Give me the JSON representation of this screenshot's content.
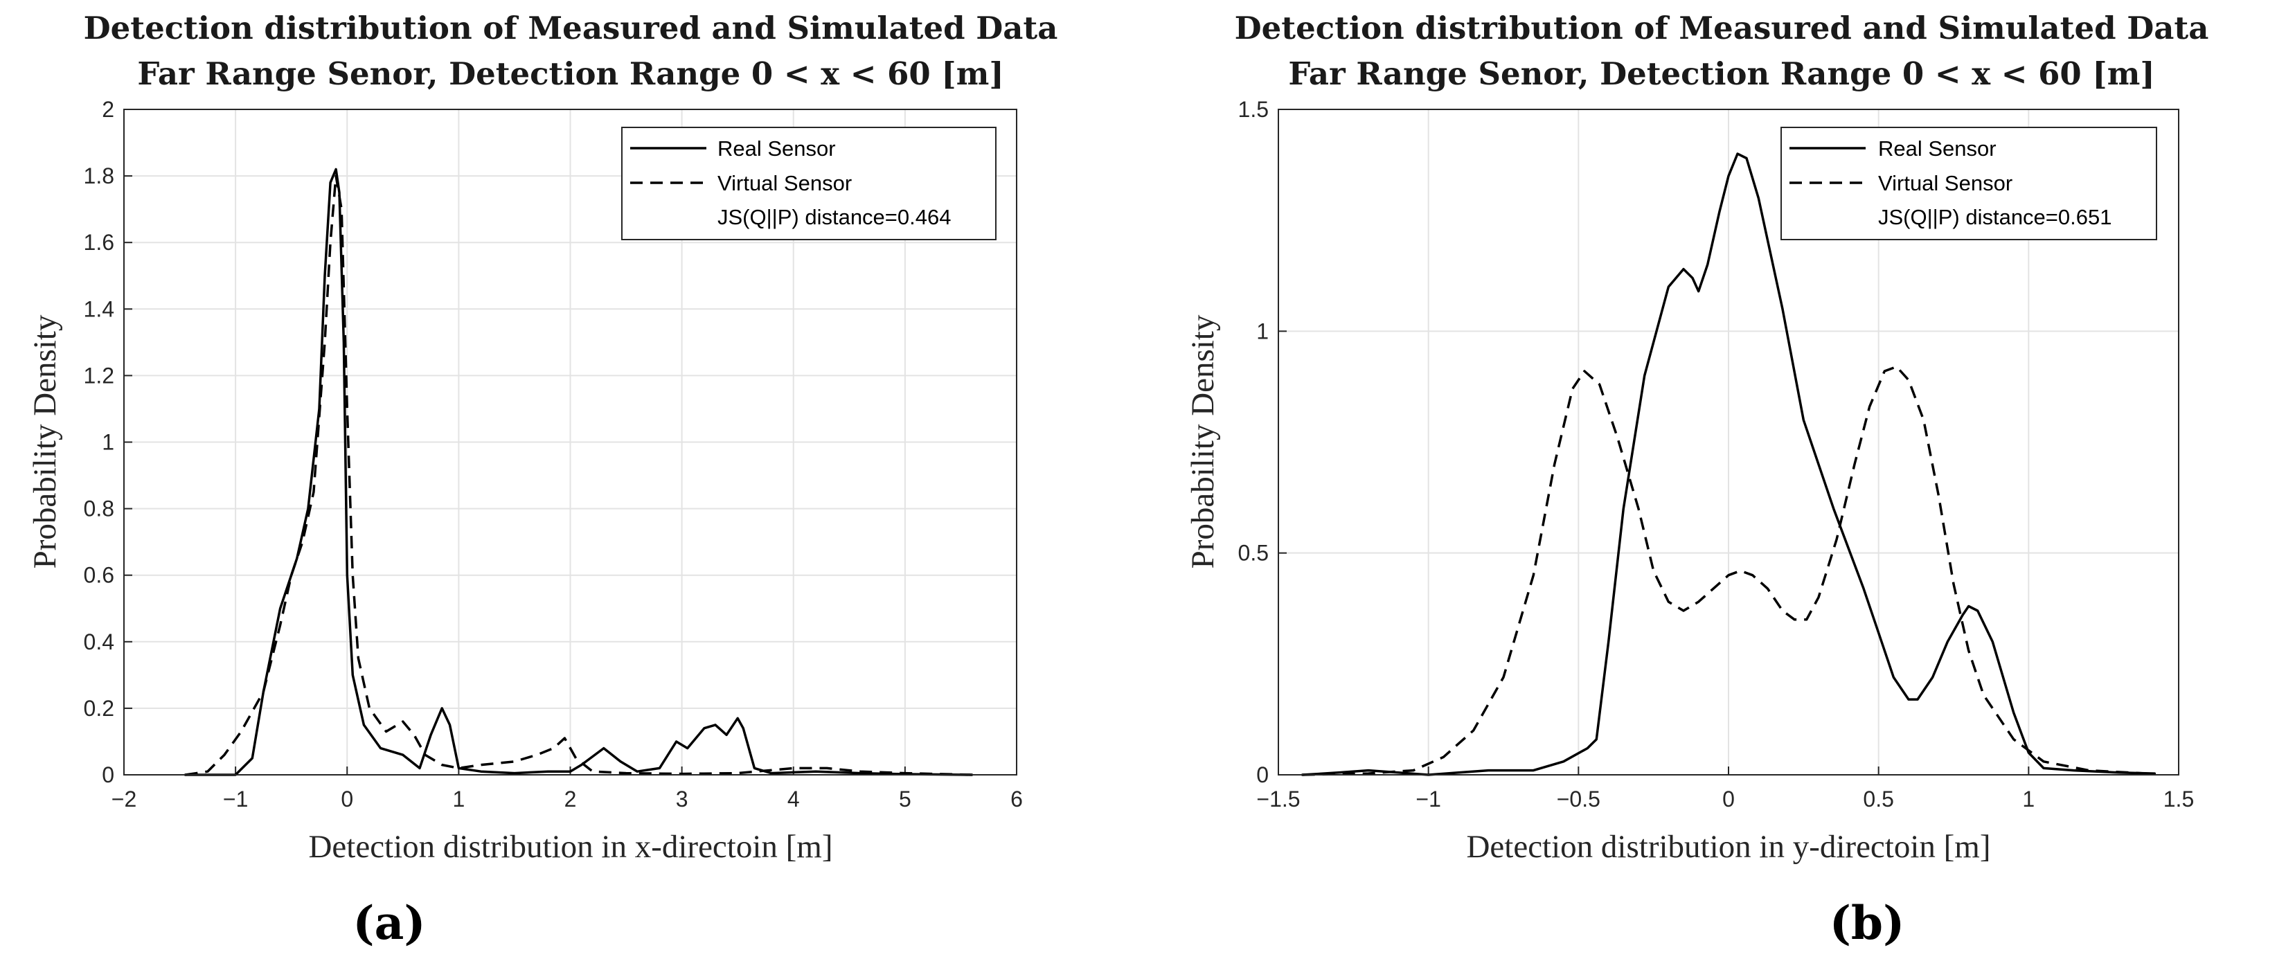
{
  "chart_data": [
    {
      "type": "line",
      "panel_label": "(a)",
      "title_line1": "Detection distribution of Measured and Simulated Data",
      "title_line2": "Far Range Senor, Detection Range 0 < x < 60 [m]",
      "xlabel": "Detection distribution in x-directoin [m]",
      "ylabel": "Probability Density",
      "xlim": [
        -2,
        6
      ],
      "ylim": [
        0,
        2
      ],
      "xticks": [
        -2,
        -1,
        0,
        1,
        2,
        3,
        4,
        5,
        6
      ],
      "yticks": [
        0,
        0.2,
        0.4,
        0.6,
        0.8,
        1,
        1.2,
        1.4,
        1.6,
        1.8,
        2
      ],
      "xtick_labels": [
        "−2",
        "−1",
        "0",
        "1",
        "2",
        "3",
        "4",
        "5",
        "6"
      ],
      "ytick_labels": [
        "0",
        "0.2",
        "0.4",
        "0.6",
        "0.8",
        "1",
        "1.2",
        "1.4",
        "1.6",
        "1.8",
        "2"
      ],
      "grid": true,
      "legend_position": "top-right",
      "annotation": "JS(Q||P) distance=0.464",
      "series": [
        {
          "name": "Real Sensor",
          "style": "solid",
          "points": [
            [
              -1.45,
              0
            ],
            [
              -1.0,
              0
            ],
            [
              -0.85,
              0.05
            ],
            [
              -0.75,
              0.25
            ],
            [
              -0.6,
              0.5
            ],
            [
              -0.45,
              0.65
            ],
            [
              -0.35,
              0.8
            ],
            [
              -0.25,
              1.1
            ],
            [
              -0.2,
              1.5
            ],
            [
              -0.15,
              1.78
            ],
            [
              -0.1,
              1.82
            ],
            [
              -0.07,
              1.75
            ],
            [
              -0.03,
              1.3
            ],
            [
              0,
              0.6
            ],
            [
              0.05,
              0.3
            ],
            [
              0.15,
              0.15
            ],
            [
              0.3,
              0.08
            ],
            [
              0.5,
              0.06
            ],
            [
              0.65,
              0.02
            ],
            [
              0.75,
              0.12
            ],
            [
              0.85,
              0.2
            ],
            [
              0.92,
              0.15
            ],
            [
              1.0,
              0.02
            ],
            [
              1.2,
              0.01
            ],
            [
              1.5,
              0.005
            ],
            [
              1.8,
              0.01
            ],
            [
              2.0,
              0.01
            ],
            [
              2.1,
              0.03
            ],
            [
              2.3,
              0.08
            ],
            [
              2.45,
              0.04
            ],
            [
              2.6,
              0.01
            ],
            [
              2.8,
              0.02
            ],
            [
              2.95,
              0.1
            ],
            [
              3.05,
              0.08
            ],
            [
              3.2,
              0.14
            ],
            [
              3.3,
              0.15
            ],
            [
              3.4,
              0.12
            ],
            [
              3.5,
              0.17
            ],
            [
              3.55,
              0.14
            ],
            [
              3.65,
              0.02
            ],
            [
              3.8,
              0.005
            ],
            [
              4.2,
              0.01
            ],
            [
              4.6,
              0.005
            ],
            [
              5.0,
              0.002
            ],
            [
              5.6,
              0
            ]
          ]
        },
        {
          "name": "Virtual Sensor",
          "style": "dashed",
          "points": [
            [
              -1.45,
              0
            ],
            [
              -1.25,
              0.01
            ],
            [
              -1.1,
              0.06
            ],
            [
              -0.95,
              0.13
            ],
            [
              -0.75,
              0.25
            ],
            [
              -0.6,
              0.45
            ],
            [
              -0.5,
              0.6
            ],
            [
              -0.4,
              0.7
            ],
            [
              -0.3,
              0.85
            ],
            [
              -0.2,
              1.3
            ],
            [
              -0.15,
              1.6
            ],
            [
              -0.1,
              1.8
            ],
            [
              -0.05,
              1.7
            ],
            [
              0,
              1.1
            ],
            [
              0.05,
              0.6
            ],
            [
              0.1,
              0.35
            ],
            [
              0.2,
              0.2
            ],
            [
              0.35,
              0.13
            ],
            [
              0.5,
              0.16
            ],
            [
              0.6,
              0.12
            ],
            [
              0.7,
              0.06
            ],
            [
              0.85,
              0.03
            ],
            [
              1.0,
              0.02
            ],
            [
              1.2,
              0.03
            ],
            [
              1.5,
              0.04
            ],
            [
              1.7,
              0.06
            ],
            [
              1.85,
              0.08
            ],
            [
              1.95,
              0.11
            ],
            [
              2.05,
              0.05
            ],
            [
              2.2,
              0.01
            ],
            [
              2.5,
              0.005
            ],
            [
              3.0,
              0.003
            ],
            [
              3.5,
              0.005
            ],
            [
              4.0,
              0.02
            ],
            [
              4.3,
              0.02
            ],
            [
              4.6,
              0.01
            ],
            [
              5.0,
              0.005
            ],
            [
              5.6,
              0
            ]
          ]
        }
      ]
    },
    {
      "type": "line",
      "panel_label": "(b)",
      "title_line1": "Detection distribution of Measured and Simulated Data",
      "title_line2": "Far Range Senor, Detection Range 0 < x < 60 [m]",
      "xlabel": "Detection distribution in y-directoin [m]",
      "ylabel": "Probability Density",
      "xlim": [
        -1.5,
        1.5
      ],
      "ylim": [
        0,
        1.5
      ],
      "xticks": [
        -1.5,
        -1,
        -0.5,
        0,
        0.5,
        1,
        1.5
      ],
      "yticks": [
        0,
        0.5,
        1,
        1.5
      ],
      "xtick_labels": [
        "−1.5",
        "−1",
        "−0.5",
        "0",
        "0.5",
        "1",
        "1.5"
      ],
      "ytick_labels": [
        "0",
        "0.5",
        "1",
        "1.5"
      ],
      "grid": true,
      "legend_position": "top-right",
      "annotation": "JS(Q||P) distance=0.651",
      "series": [
        {
          "name": "Real Sensor",
          "style": "solid",
          "points": [
            [
              -1.42,
              0
            ],
            [
              -1.3,
              0.005
            ],
            [
              -1.2,
              0.01
            ],
            [
              -1.1,
              0.005
            ],
            [
              -1.0,
              0.0
            ],
            [
              -0.9,
              0.005
            ],
            [
              -0.8,
              0.01
            ],
            [
              -0.65,
              0.01
            ],
            [
              -0.55,
              0.03
            ],
            [
              -0.47,
              0.06
            ],
            [
              -0.44,
              0.08
            ],
            [
              -0.4,
              0.3
            ],
            [
              -0.35,
              0.6
            ],
            [
              -0.28,
              0.9
            ],
            [
              -0.2,
              1.1
            ],
            [
              -0.15,
              1.14
            ],
            [
              -0.12,
              1.12
            ],
            [
              -0.1,
              1.09
            ],
            [
              -0.07,
              1.15
            ],
            [
              -0.03,
              1.27
            ],
            [
              0.0,
              1.35
            ],
            [
              0.03,
              1.4
            ],
            [
              0.06,
              1.39
            ],
            [
              0.1,
              1.3
            ],
            [
              0.18,
              1.05
            ],
            [
              0.25,
              0.8
            ],
            [
              0.35,
              0.6
            ],
            [
              0.45,
              0.42
            ],
            [
              0.5,
              0.32
            ],
            [
              0.55,
              0.22
            ],
            [
              0.6,
              0.17
            ],
            [
              0.63,
              0.17
            ],
            [
              0.68,
              0.22
            ],
            [
              0.73,
              0.3
            ],
            [
              0.78,
              0.36
            ],
            [
              0.8,
              0.38
            ],
            [
              0.83,
              0.37
            ],
            [
              0.88,
              0.3
            ],
            [
              0.95,
              0.14
            ],
            [
              1.0,
              0.05
            ],
            [
              1.05,
              0.015
            ],
            [
              1.15,
              0.01
            ],
            [
              1.3,
              0.005
            ],
            [
              1.42,
              0.003
            ]
          ]
        },
        {
          "name": "Virtual Sensor",
          "style": "dashed",
          "points": [
            [
              -1.42,
              0
            ],
            [
              -1.2,
              0.003
            ],
            [
              -1.05,
              0.01
            ],
            [
              -0.95,
              0.04
            ],
            [
              -0.85,
              0.1
            ],
            [
              -0.75,
              0.22
            ],
            [
              -0.65,
              0.45
            ],
            [
              -0.58,
              0.7
            ],
            [
              -0.52,
              0.87
            ],
            [
              -0.48,
              0.91
            ],
            [
              -0.43,
              0.88
            ],
            [
              -0.37,
              0.76
            ],
            [
              -0.3,
              0.6
            ],
            [
              -0.25,
              0.46
            ],
            [
              -0.2,
              0.39
            ],
            [
              -0.15,
              0.37
            ],
            [
              -0.1,
              0.39
            ],
            [
              -0.05,
              0.42
            ],
            [
              0.0,
              0.45
            ],
            [
              0.04,
              0.46
            ],
            [
              0.08,
              0.45
            ],
            [
              0.13,
              0.42
            ],
            [
              0.18,
              0.37
            ],
            [
              0.22,
              0.35
            ],
            [
              0.26,
              0.35
            ],
            [
              0.3,
              0.4
            ],
            [
              0.36,
              0.53
            ],
            [
              0.42,
              0.7
            ],
            [
              0.47,
              0.83
            ],
            [
              0.52,
              0.91
            ],
            [
              0.56,
              0.92
            ],
            [
              0.6,
              0.89
            ],
            [
              0.65,
              0.8
            ],
            [
              0.7,
              0.63
            ],
            [
              0.75,
              0.43
            ],
            [
              0.8,
              0.28
            ],
            [
              0.85,
              0.18
            ],
            [
              0.95,
              0.08
            ],
            [
              1.05,
              0.03
            ],
            [
              1.2,
              0.01
            ],
            [
              1.42,
              0.002
            ]
          ]
        }
      ]
    }
  ]
}
